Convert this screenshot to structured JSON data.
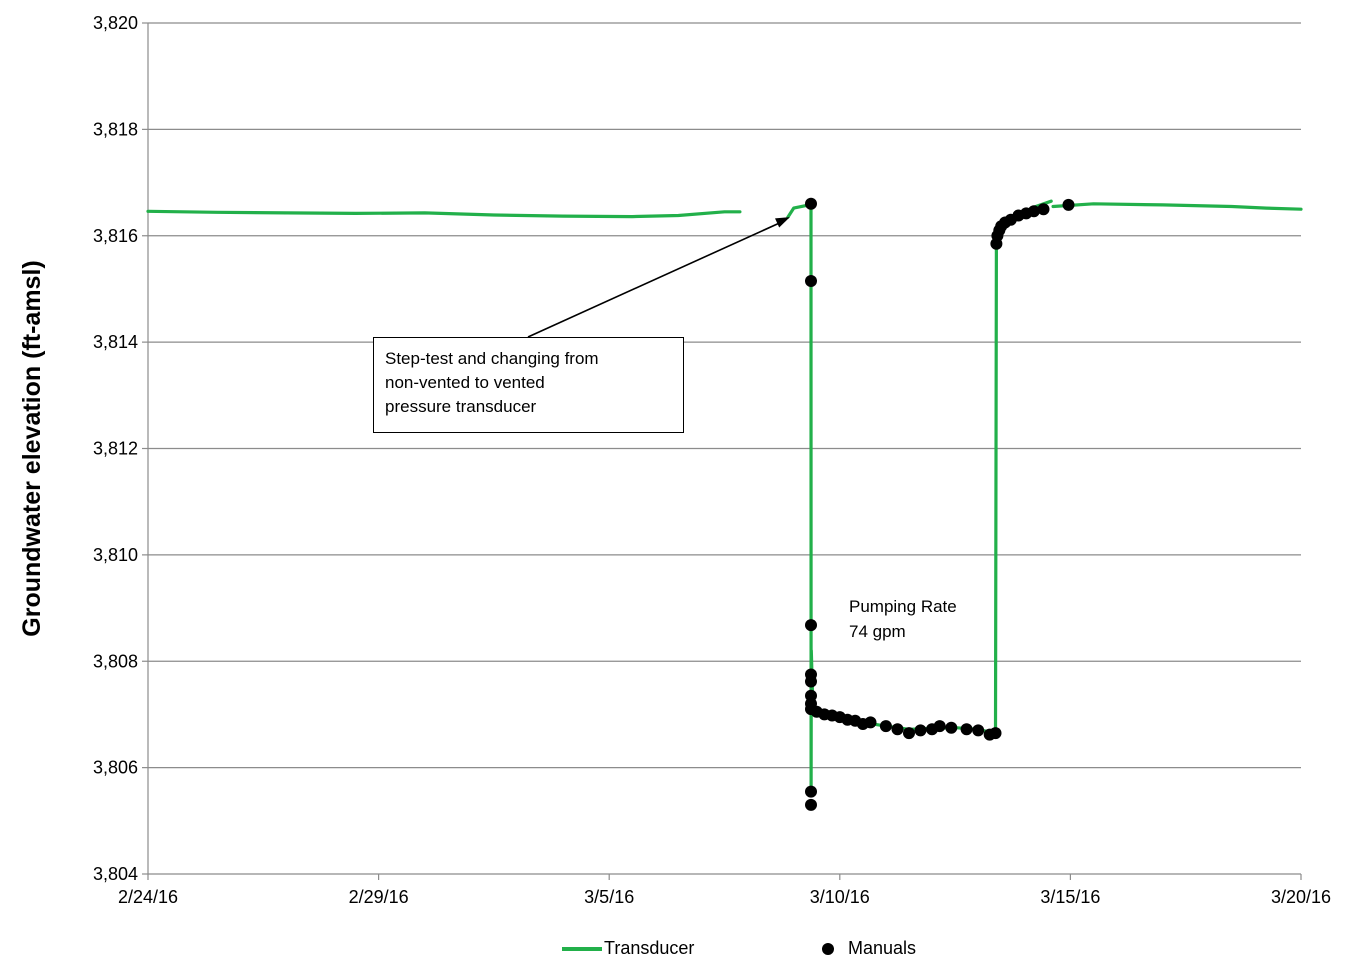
{
  "chart_data": {
    "type": "line",
    "title": "",
    "xlabel": "",
    "ylabel": "Groundwater elevation (ft-amsl)",
    "xlim": [
      "2016-02-24",
      "2016-03-20"
    ],
    "ylim": [
      3804,
      3820
    ],
    "x_ticks": [
      "2/24/16",
      "2/29/16",
      "3/5/16",
      "3/10/16",
      "3/15/16",
      "3/20/16"
    ],
    "y_ticks": [
      "3,804",
      "3,806",
      "3,808",
      "3,810",
      "3,812",
      "3,814",
      "3,816",
      "3,818",
      "3,820"
    ],
    "grid": "horizontal",
    "legend_position": "bottom",
    "series": [
      {
        "name": "Transducer",
        "style": "line",
        "color": "#22b04a",
        "segments": [
          [
            [
              "2016-02-24 00:00",
              3816.46
            ],
            [
              "2016-02-25 12:00",
              3816.44
            ],
            [
              "2016-02-27 00:00",
              3816.43
            ],
            [
              "2016-02-28 12:00",
              3816.42
            ],
            [
              "2016-03-01 00:00",
              3816.43
            ],
            [
              "2016-03-02 12:00",
              3816.39
            ],
            [
              "2016-03-04 00:00",
              3816.37
            ],
            [
              "2016-03-05 12:00",
              3816.36
            ],
            [
              "2016-03-06 12:00",
              3816.38
            ],
            [
              "2016-03-07 12:00",
              3816.45
            ],
            [
              "2016-03-07 20:00",
              3816.45
            ]
          ],
          [
            [
              "2016-03-08 21:00",
              3816.35
            ],
            [
              "2016-03-09 00:00",
              3816.52
            ],
            [
              "2016-03-09 08:00",
              3816.58
            ],
            [
              "2016-03-09 09:00",
              3816.6
            ],
            [
              "2016-03-09 09:05",
              3805.6
            ],
            [
              "2016-03-09 09:10",
              3808.2
            ],
            [
              "2016-03-09 10:00",
              3807.1
            ],
            [
              "2016-03-09 14:00",
              3807.0
            ],
            [
              "2016-03-10 00:00",
              3806.9
            ],
            [
              "2016-03-10 12:00",
              3806.85
            ],
            [
              "2016-03-11 00:00",
              3806.78
            ],
            [
              "2016-03-11 12:00",
              3806.72
            ],
            [
              "2016-03-12 00:00",
              3806.74
            ],
            [
              "2016-03-12 12:00",
              3806.75
            ],
            [
              "2016-03-13 00:00",
              3806.72
            ],
            [
              "2016-03-13 08:00",
              3806.65
            ],
            [
              "2016-03-13 09:00",
              3806.66
            ],
            [
              "2016-03-13 09:30",
              3815.9
            ],
            [
              "2016-03-13 12:00",
              3816.2
            ],
            [
              "2016-03-14 00:00",
              3816.45
            ],
            [
              "2016-03-14 06:00",
              3816.55
            ],
            [
              "2016-03-14 14:00",
              3816.65
            ]
          ],
          [
            [
              "2016-03-14 15:00",
              3816.55
            ],
            [
              "2016-03-15 12:00",
              3816.6
            ],
            [
              "2016-03-17 00:00",
              3816.58
            ],
            [
              "2016-03-18 12:00",
              3816.55
            ],
            [
              "2016-03-19 06:00",
              3816.52
            ],
            [
              "2016-03-20 00:00",
              3816.5
            ]
          ]
        ]
      },
      {
        "name": "Manuals",
        "style": "scatter",
        "color": "#000000",
        "points": [
          [
            "2016-03-09 09:00",
            3816.6
          ],
          [
            "2016-03-09 09:00",
            3815.15
          ],
          [
            "2016-03-09 09:00",
            3808.68
          ],
          [
            "2016-03-09 09:00",
            3807.75
          ],
          [
            "2016-03-09 09:00",
            3807.62
          ],
          [
            "2016-03-09 09:00",
            3807.35
          ],
          [
            "2016-03-09 09:00",
            3807.2
          ],
          [
            "2016-03-09 09:00",
            3807.1
          ],
          [
            "2016-03-09 09:00",
            3805.55
          ],
          [
            "2016-03-09 09:00",
            3805.3
          ],
          [
            "2016-03-09 12:00",
            3807.05
          ],
          [
            "2016-03-09 16:00",
            3807.0
          ],
          [
            "2016-03-09 20:00",
            3806.98
          ],
          [
            "2016-03-10 00:00",
            3806.95
          ],
          [
            "2016-03-10 04:00",
            3806.9
          ],
          [
            "2016-03-10 08:00",
            3806.88
          ],
          [
            "2016-03-10 12:00",
            3806.82
          ],
          [
            "2016-03-10 16:00",
            3806.85
          ],
          [
            "2016-03-11 00:00",
            3806.78
          ],
          [
            "2016-03-11 06:00",
            3806.72
          ],
          [
            "2016-03-11 12:00",
            3806.65
          ],
          [
            "2016-03-11 18:00",
            3806.7
          ],
          [
            "2016-03-12 00:00",
            3806.72
          ],
          [
            "2016-03-12 04:00",
            3806.78
          ],
          [
            "2016-03-12 10:00",
            3806.75
          ],
          [
            "2016-03-12 18:00",
            3806.72
          ],
          [
            "2016-03-13 00:00",
            3806.7
          ],
          [
            "2016-03-13 06:00",
            3806.62
          ],
          [
            "2016-03-13 09:00",
            3806.65
          ],
          [
            "2016-03-13 09:30",
            3815.85
          ],
          [
            "2016-03-13 10:00",
            3816.0
          ],
          [
            "2016-03-13 11:00",
            3816.1
          ],
          [
            "2016-03-13 12:00",
            3816.18
          ],
          [
            "2016-03-13 14:00",
            3816.25
          ],
          [
            "2016-03-13 17:00",
            3816.3
          ],
          [
            "2016-03-13 21:00",
            3816.38
          ],
          [
            "2016-03-14 01:00",
            3816.42
          ],
          [
            "2016-03-14 05:00",
            3816.46
          ],
          [
            "2016-03-14 10:00",
            3816.5
          ],
          [
            "2016-03-14 23:00",
            3816.58
          ]
        ]
      }
    ],
    "annotations": [
      {
        "id": "step-test",
        "lines": [
          "Step-test and changing from",
          "non-vented to vented",
          "pressure transducer"
        ],
        "arrow_target": [
          "2016-03-08 22:00",
          3816.35
        ]
      },
      {
        "id": "pumping-rate",
        "lines": [
          "Pumping Rate",
          "74 gpm"
        ]
      }
    ]
  }
}
